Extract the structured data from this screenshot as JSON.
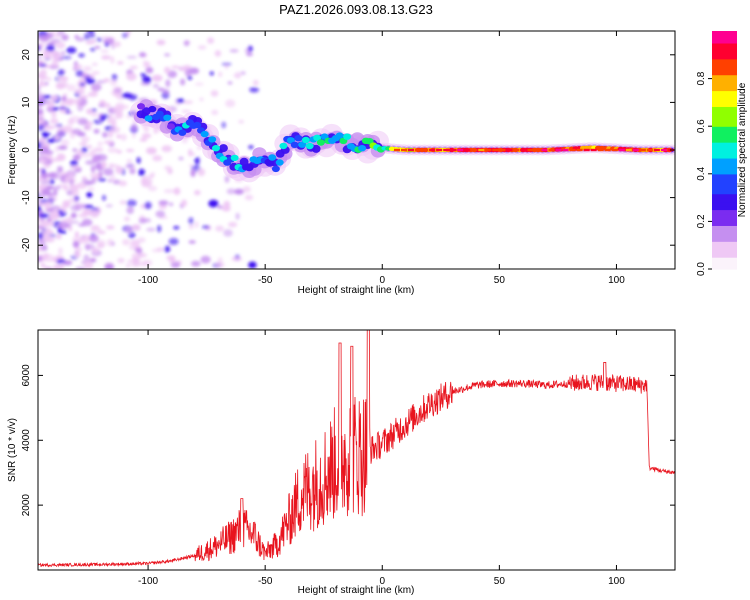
{
  "title": "PAZ1.2026.093.08.13.G23",
  "colors": {
    "snr_line": "#e8141e",
    "axis": "#000000",
    "colormap": [
      "#fbf3fb",
      "#efc8f5",
      "#c58ff0",
      "#7b2cf0",
      "#3b10f0",
      "#2242ff",
      "#00a0ff",
      "#00f0e0",
      "#10f060",
      "#90ff00",
      "#ffff00",
      "#ffb000",
      "#ff4000",
      "#ff0030",
      "#ff0090"
    ]
  },
  "chart_data": [
    {
      "type": "heatmap",
      "name": "spectrogram",
      "xlabel": "Height of straight line (km)",
      "ylabel": "Frequency (Hz)",
      "xlim": [
        -147,
        125
      ],
      "ylim": [
        -25,
        25
      ],
      "xticks": [
        -100,
        -50,
        0,
        50,
        100
      ],
      "yticks": [
        -20,
        -10,
        0,
        10,
        20
      ],
      "colorbar": {
        "label": "Normalized spectral amplitude",
        "range": [
          0,
          1
        ],
        "ticks": [
          0.0,
          0.2,
          0.4,
          0.6,
          0.8
        ]
      },
      "signal_track": [
        {
          "x": -103,
          "y": 8,
          "amp": 0.3
        },
        {
          "x": -95,
          "y": 7.5,
          "amp": 0.3
        },
        {
          "x": -88,
          "y": 4,
          "amp": 0.35
        },
        {
          "x": -80,
          "y": 6,
          "amp": 0.45
        },
        {
          "x": -75,
          "y": 3,
          "amp": 0.45
        },
        {
          "x": -68,
          "y": -1,
          "amp": 0.4
        },
        {
          "x": -62,
          "y": -3,
          "amp": 0.45
        },
        {
          "x": -58,
          "y": -4,
          "amp": 0.35
        },
        {
          "x": -52,
          "y": -2,
          "amp": 0.35
        },
        {
          "x": -45,
          "y": -3,
          "amp": 0.35
        },
        {
          "x": -40,
          "y": 2,
          "amp": 0.4
        },
        {
          "x": -33,
          "y": 1,
          "amp": 0.4
        },
        {
          "x": -25,
          "y": 2,
          "amp": 0.45
        },
        {
          "x": -18,
          "y": 2,
          "amp": 0.5
        },
        {
          "x": -10,
          "y": 1,
          "amp": 0.5
        },
        {
          "x": -2,
          "y": 0.5,
          "amp": 0.55
        },
        {
          "x": 10,
          "y": 0,
          "amp": 0.75
        },
        {
          "x": 30,
          "y": 0,
          "amp": 0.9
        },
        {
          "x": 50,
          "y": 0,
          "amp": 0.95
        },
        {
          "x": 70,
          "y": 0,
          "amp": 0.9
        },
        {
          "x": 90,
          "y": 0.5,
          "amp": 0.85
        },
        {
          "x": 110,
          "y": 0,
          "amp": 0.85
        },
        {
          "x": 124,
          "y": 0,
          "amp": 0.85
        }
      ]
    },
    {
      "type": "line",
      "name": "snr",
      "xlabel": "Height of straight line (km)",
      "ylabel": "SNR (10 * v/v)",
      "xlim": [
        -147,
        125
      ],
      "ylim": [
        0,
        7400
      ],
      "xticks": [
        -100,
        -50,
        0,
        50,
        100
      ],
      "yticks": [
        2000,
        4000,
        6000
      ],
      "series": [
        {
          "name": "SNR",
          "x": [
            -147,
            -120,
            -100,
            -90,
            -80,
            -72,
            -65,
            -60,
            -55,
            -50,
            -45,
            -40,
            -35,
            -30,
            -25,
            -20,
            -15,
            -10,
            -5,
            0,
            10,
            20,
            30,
            40,
            50,
            60,
            70,
            80,
            90,
            100,
            110,
            113,
            114,
            120,
            125
          ],
          "y": [
            150,
            170,
            200,
            280,
            450,
            700,
            1000,
            1300,
            1100,
            500,
            800,
            1500,
            2300,
            2600,
            2900,
            3300,
            3600,
            3600,
            3700,
            3900,
            4500,
            5100,
            5500,
            5700,
            5750,
            5750,
            5700,
            5750,
            5800,
            5750,
            5700,
            5700,
            3150,
            3050,
            3000
          ],
          "peaks": [
            {
              "x": -60,
              "y": 2200
            },
            {
              "x": -18,
              "y": 7000
            },
            {
              "x": -13,
              "y": 6900
            },
            {
              "x": -6,
              "y": 7400
            },
            {
              "x": 95,
              "y": 6400
            }
          ]
        }
      ]
    }
  ]
}
